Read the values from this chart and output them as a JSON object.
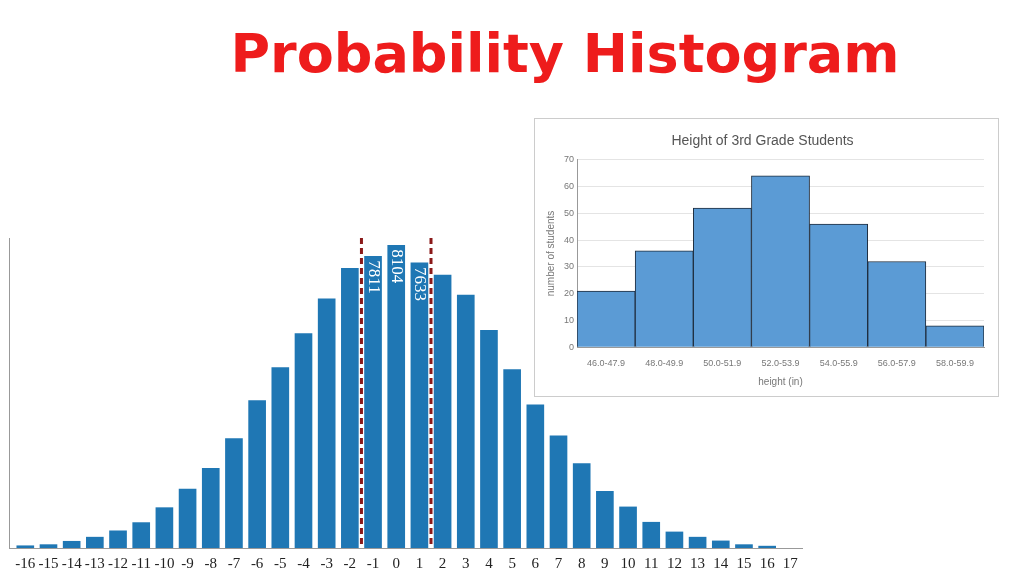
{
  "chart_data": [
    {
      "type": "bar",
      "title": "Probability Histogram",
      "x": [
        -16,
        -15,
        -14,
        -13,
        -12,
        -11,
        -10,
        -9,
        -8,
        -7,
        -6,
        -5,
        -4,
        -3,
        -2,
        -1,
        0,
        1,
        2,
        3,
        4,
        5,
        6,
        7,
        8,
        9,
        10,
        11,
        12,
        13,
        14,
        15,
        16
      ],
      "values": [
        60,
        90,
        180,
        290,
        460,
        680,
        1080,
        1580,
        2130,
        2930,
        3950,
        4830,
        5740,
        6670,
        7490,
        7811,
        8104,
        7633,
        7310,
        6770,
        5830,
        4780,
        3830,
        3000,
        2260,
        1520,
        1100,
        690,
        430,
        290,
        190,
        90,
        50
      ],
      "value_labels": [
        null,
        null,
        null,
        null,
        null,
        null,
        null,
        null,
        null,
        null,
        null,
        null,
        null,
        null,
        null,
        "7811",
        "8104",
        "7633",
        null,
        null,
        null,
        null,
        null,
        null,
        null,
        null,
        null,
        null,
        null,
        null,
        null,
        null,
        null
      ],
      "color": "#1f77b4",
      "xlim": [
        -16.2,
        17
      ],
      "xticks": [
        -16,
        -15,
        -14,
        -13,
        -12,
        -11,
        -10,
        -9,
        -8,
        -7,
        -6,
        -5,
        -4,
        -3,
        -2,
        -1,
        0,
        1,
        2,
        3,
        4,
        5,
        6,
        7,
        8,
        9,
        10,
        11,
        12,
        13,
        14,
        15,
        16,
        17
      ],
      "ylim": [
        0,
        8300
      ],
      "ref_lines": [
        {
          "axis": "x",
          "value": -1.5,
          "color": "#8b1a1a",
          "line_style": "dashed"
        },
        {
          "axis": "x",
          "value": 1.5,
          "color": "#8b1a1a",
          "line_style": "dashed"
        }
      ],
      "grid": false,
      "legend": false
    },
    {
      "type": "bar",
      "title": "Height of 3rd Grade Students",
      "xlabel": "height (in)",
      "ylabel": "number of students",
      "categories": [
        "46.0-47.9",
        "48.0-49.9",
        "50.0-51.9",
        "52.0-53.9",
        "54.0-55.9",
        "56.0-57.9",
        "58.0-59.9"
      ],
      "values": [
        21,
        36,
        52,
        64,
        46,
        32,
        8
      ],
      "color": "#5b9bd5",
      "ylim": [
        0,
        70
      ],
      "yticks": [
        0,
        10,
        20,
        30,
        40,
        50,
        60,
        70
      ],
      "grid": "y",
      "legend": false
    }
  ]
}
